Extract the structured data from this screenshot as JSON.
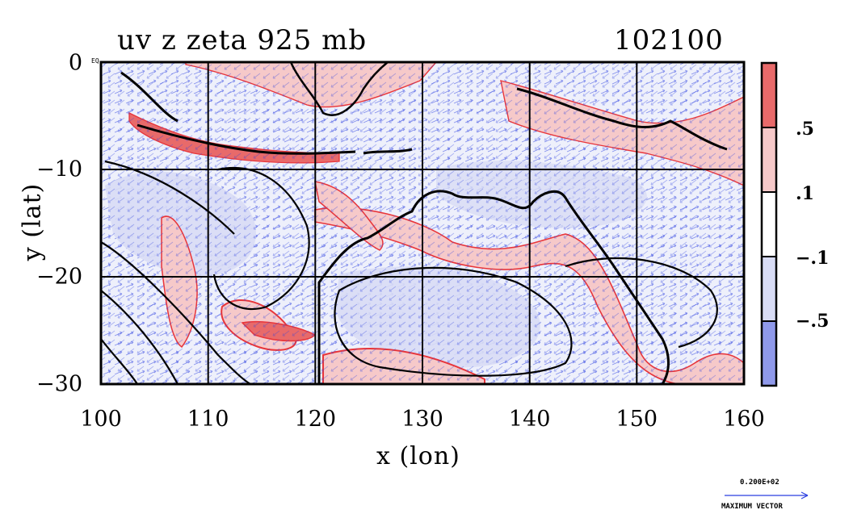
{
  "title": "uv z zeta 925 mb",
  "datecode": "102100",
  "x_axis": {
    "label": "x (lon)",
    "ticks": [
      "100",
      "110",
      "120",
      "130",
      "140",
      "150",
      "160"
    ]
  },
  "y_axis": {
    "label": "y (lat)",
    "ticks": [
      "0",
      "−10",
      "−20",
      "−30"
    ]
  },
  "equator_label": "EQ",
  "colorbar": {
    "labels": [
      ".5",
      ".1",
      "−.1",
      "−.5"
    ],
    "colors": [
      "#e86a6a",
      "#f6c9c9",
      "#ffffff",
      "#d8dcf5",
      "#8f99ea"
    ]
  },
  "vector_reference": {
    "value": "0.200E+02",
    "caption": "MAXIMUM VECTOR"
  },
  "colors": {
    "positive": "#e8353a",
    "negative": "#2a3ee0",
    "contour": "#000000",
    "land_fill": "#dde1f6"
  }
}
